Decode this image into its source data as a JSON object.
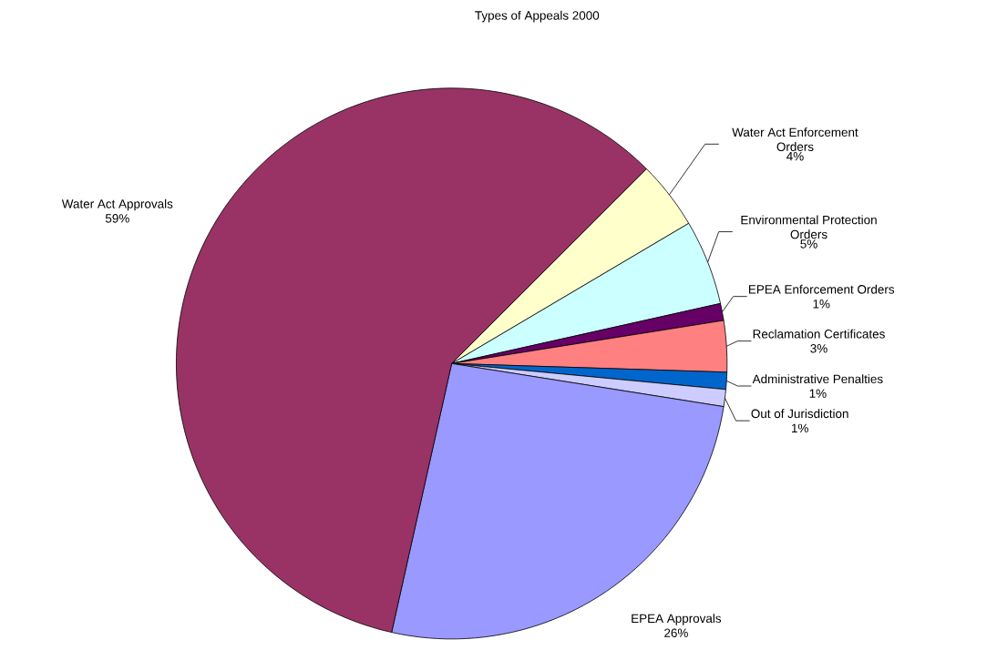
{
  "chart_data": {
    "type": "pie",
    "title": "Types of Appeals 2000",
    "categories": [
      "Water Act Enforcement Orders",
      "Environmental Protection Orders",
      "EPEA Enforcement Orders",
      "Reclamation Certificates",
      "Administrative Penalties",
      "Out of Jurisdiction",
      "EPEA Approvals",
      "Water Act Approvals"
    ],
    "values": [
      4,
      5,
      1,
      3,
      1,
      1,
      26,
      59
    ],
    "value_labels": [
      "4%",
      "5%",
      "1%",
      "3%",
      "1%",
      "1%",
      "26%",
      "59%"
    ],
    "colors": [
      "#ffffcc",
      "#ccffff",
      "#660066",
      "#ff8080",
      "#0066cc",
      "#ccccff",
      "#9999ff",
      "#993366"
    ]
  }
}
